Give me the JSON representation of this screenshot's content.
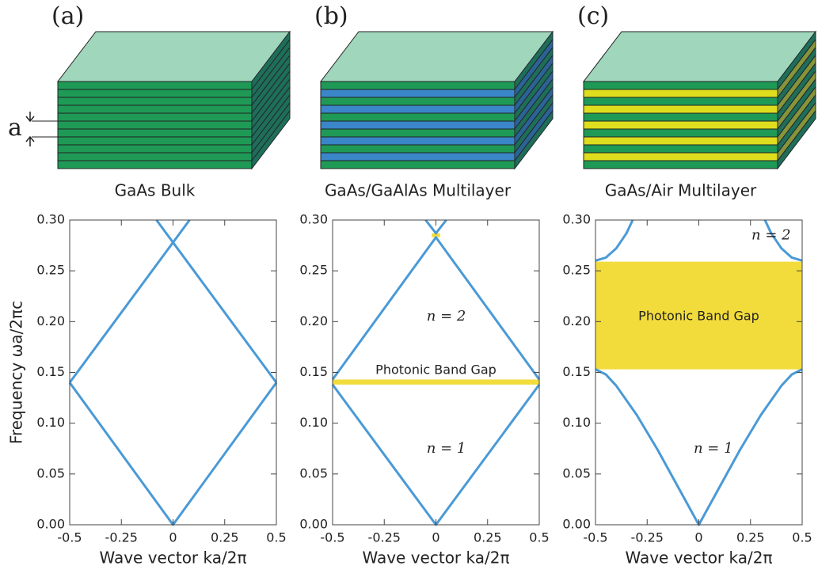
{
  "chart_data": [
    {
      "type": "line",
      "label": "(a)",
      "caption": "GaAs Bulk",
      "layer_label": "a",
      "layer_colors": [
        "#1f9a56",
        "#1f9a56"
      ],
      "xlabel": "Wave vector  ka/2π",
      "ylabel": "Frequency  ωa/2πc",
      "xlim": [
        -0.5,
        0.5
      ],
      "ylim": [
        0,
        0.3
      ],
      "xticks": [
        -0.5,
        -0.25,
        0,
        0.25,
        0.5
      ],
      "yticks": [
        {
          "value": 0,
          "label": "0.00"
        },
        {
          "value": 0.05,
          "label": "0.05"
        },
        {
          "value": 0.1,
          "label": "0.10"
        },
        {
          "value": 0.15,
          "label": "0.15"
        },
        {
          "value": 0.2,
          "label": "0.20"
        },
        {
          "value": 0.25,
          "label": "0.25"
        },
        {
          "value": 0.3,
          "label": "0.30"
        }
      ],
      "series": [
        {
          "color": "#4a9ad6",
          "x": [
            -0.5,
            0,
            0.5
          ],
          "values": [
            0.14,
            0,
            0.14
          ]
        },
        {
          "color": "#4a9ad6",
          "x": [
            -0.5,
            0.08
          ],
          "values": [
            0.14,
            0.3
          ]
        },
        {
          "color": "#4a9ad6",
          "x": [
            0.5,
            -0.08
          ],
          "values": [
            0.14,
            0.3
          ]
        }
      ],
      "gaps": [],
      "annotations": []
    },
    {
      "type": "line",
      "label": "(b)",
      "caption": "GaAs/GaAlAs Multilayer",
      "layer_colors": [
        "#1f9a56",
        "#3a86c8"
      ],
      "xlabel": "Wave vector  ka/2π",
      "xlim": [
        -0.5,
        0.5
      ],
      "ylim": [
        0,
        0.3
      ],
      "xticks": [
        -0.5,
        -0.25,
        0,
        0.25,
        0.5
      ],
      "yticks": [
        {
          "value": 0,
          "label": "0.00"
        },
        {
          "value": 0.05,
          "label": "0.05"
        },
        {
          "value": 0.1,
          "label": "0.10"
        },
        {
          "value": 0.15,
          "label": "0.15"
        },
        {
          "value": 0.2,
          "label": "0.20"
        },
        {
          "value": 0.25,
          "label": "0.25"
        },
        {
          "value": 0.3,
          "label": "0.30"
        }
      ],
      "series": [
        {
          "color": "#4a9ad6",
          "x": [
            -0.5,
            0,
            0.5
          ],
          "values": [
            0.138,
            0,
            0.138
          ]
        },
        {
          "color": "#4a9ad6",
          "x": [
            -0.5,
            0,
            0.5
          ],
          "values": [
            0.143,
            0.283,
            0.143
          ]
        },
        {
          "color": "#4a9ad6",
          "x": [
            -0.05,
            0,
            0.05
          ],
          "values": [
            0.3,
            0.287,
            0.3
          ]
        }
      ],
      "gaps": [
        {
          "color": "#f2dc3c",
          "x": [
            -0.5,
            0.5
          ],
          "y": [
            0.138,
            0.143
          ]
        },
        {
          "color": "#f2dc3c",
          "x": [
            -0.02,
            0.02
          ],
          "y": [
            0.283,
            0.287
          ]
        }
      ],
      "annotations": [
        "Photonic Band Gap",
        "n = 2",
        "n = 1"
      ]
    },
    {
      "type": "line",
      "label": "(c)",
      "caption": "GaAs/Air Multilayer",
      "layer_colors": [
        "#1f9a56",
        "#dede1e"
      ],
      "xlabel": "Wave vector  ka/2π",
      "xlim": [
        -0.5,
        0.5
      ],
      "ylim": [
        0,
        0.3
      ],
      "xticks": [
        -0.5,
        -0.25,
        0,
        0.25,
        0.5
      ],
      "yticks": [
        {
          "value": 0,
          "label": "0.00"
        },
        {
          "value": 0.05,
          "label": "0.05"
        },
        {
          "value": 0.1,
          "label": "0.10"
        },
        {
          "value": 0.15,
          "label": "0.15"
        },
        {
          "value": 0.2,
          "label": "0.20"
        },
        {
          "value": 0.25,
          "label": "0.25"
        },
        {
          "value": 0.3,
          "label": "0.30"
        }
      ],
      "series": [
        {
          "color": "#4a9ad6",
          "x": [
            -0.5,
            -0.45,
            -0.4,
            -0.3,
            -0.2,
            -0.1,
            0,
            0.1,
            0.2,
            0.3,
            0.4,
            0.45,
            0.5
          ],
          "values": [
            0.153,
            0.148,
            0.137,
            0.108,
            0.074,
            0.037,
            0,
            0.037,
            0.074,
            0.108,
            0.137,
            0.148,
            0.153
          ]
        },
        {
          "color": "#4a9ad6",
          "x": [
            -0.5,
            -0.45,
            -0.4,
            -0.35,
            -0.32
          ],
          "values": [
            0.26,
            0.263,
            0.272,
            0.287,
            0.3
          ]
        },
        {
          "color": "#4a9ad6",
          "x": [
            0.5,
            0.45,
            0.4,
            0.35,
            0.32
          ],
          "values": [
            0.26,
            0.263,
            0.272,
            0.287,
            0.3
          ]
        }
      ],
      "gaps": [
        {
          "color": "#f2dc3c",
          "x": [
            -0.5,
            0.5
          ],
          "y": [
            0.153,
            0.259
          ]
        }
      ],
      "annotations": [
        "Photonic Band Gap",
        "n = 2",
        "n = 1"
      ]
    }
  ]
}
